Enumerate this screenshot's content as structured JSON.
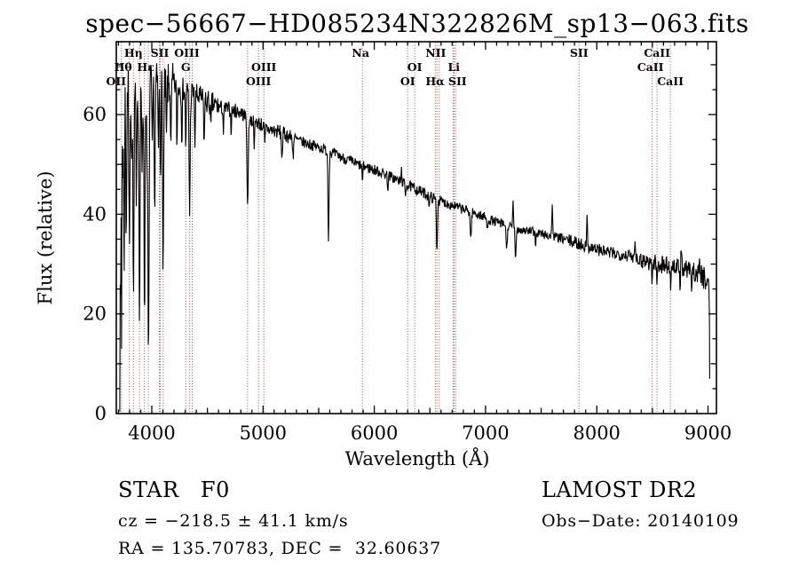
{
  "chart": {
    "title": "spec−56667−HD085234N322826M_sp13−063.fits",
    "xlabel": "Wavelength (Å)",
    "ylabel": "Flux (relative)"
  },
  "annotations": {
    "class_label": "STAR   F0",
    "survey": "LAMOST DR2",
    "cz": "cz = −218.5 ± 41.1 km/s",
    "obs_date": "Obs−Date: 20140109",
    "coords": "RA = 135.70783, DEC =  32.60637"
  },
  "chart_data": {
    "type": "line",
    "title": "spec−56667−HD085234N322826M_sp13−063.fits",
    "xlabel": "Wavelength (Å)",
    "ylabel": "Flux (relative)",
    "xlim": [
      3681,
      9076
    ],
    "ylim": [
      0,
      74.6
    ],
    "x_ticks": [
      4000,
      5000,
      6000,
      7000,
      8000,
      9000
    ],
    "y_ticks": [
      0,
      20,
      40,
      60
    ],
    "x_minor_step": 100,
    "y_minor_step": 5,
    "grid": false,
    "line_color": "#000000",
    "marker_color": "#9a4b4b",
    "marker_lines": [
      3727,
      3798,
      3835,
      3889,
      3934,
      3969,
      4068,
      4076,
      4102,
      4305,
      4340,
      4363,
      4861,
      4959,
      5007,
      5893,
      6300,
      6363,
      6548,
      6563,
      6584,
      6708,
      6717,
      6731,
      7840,
      8498,
      8542,
      8662
    ],
    "line_labels": [
      {
        "text": "Hη",
        "wavelength": 3835,
        "row": 1,
        "dx": 0
      },
      {
        "text": "SII",
        "wavelength": 4072,
        "row": 1,
        "dx": 0
      },
      {
        "text": "OIII",
        "wavelength": 4363,
        "row": 1,
        "dx": -6
      },
      {
        "text": "Na",
        "wavelength": 5893,
        "row": 1,
        "dx": -2
      },
      {
        "text": "NII",
        "wavelength": 6584,
        "row": 1,
        "dx": -4
      },
      {
        "text": "SII",
        "wavelength": 7840,
        "row": 1,
        "dx": 0
      },
      {
        "text": "CaII",
        "wavelength": 8542,
        "row": 1,
        "dx": 0
      },
      {
        "text": "Hθ",
        "wavelength": 3798,
        "row": 2,
        "dx": -7
      },
      {
        "text": "Hε",
        "wavelength": 3969,
        "row": 2,
        "dx": -3
      },
      {
        "text": "G",
        "wavelength": 4305,
        "row": 2,
        "dx": 0
      },
      {
        "text": "OIII",
        "wavelength": 5007,
        "row": 2,
        "dx": 0
      },
      {
        "text": "OI",
        "wavelength": 6363,
        "row": 2,
        "dx": 0
      },
      {
        "text": "Li",
        "wavelength": 6708,
        "row": 2,
        "dx": 1
      },
      {
        "text": "CaII",
        "wavelength": 8498,
        "row": 2,
        "dx": -2
      },
      {
        "text": "OII",
        "wavelength": 3727,
        "row": 3,
        "dx": -6
      },
      {
        "text": "OIII",
        "wavelength": 4959,
        "row": 3,
        "dx": 0
      },
      {
        "text": "OI",
        "wavelength": 6300,
        "row": 3,
        "dx": 0
      },
      {
        "text": "Hα",
        "wavelength": 6563,
        "row": 3,
        "dx": -2
      },
      {
        "text": "SII",
        "wavelength": 6724,
        "row": 3,
        "dx": 3
      },
      {
        "text": "CaII",
        "wavelength": 8662,
        "row": 3,
        "dx": 0
      }
    ],
    "continuum_points": [
      [
        3712,
        2
      ],
      [
        3715,
        40
      ],
      [
        3719,
        10
      ],
      [
        3723,
        58
      ],
      [
        3728,
        34
      ],
      [
        3733,
        62
      ],
      [
        3739,
        50
      ],
      [
        3745,
        63
      ],
      [
        3752,
        55
      ],
      [
        3760,
        64
      ],
      [
        3770,
        61
      ],
      [
        3780,
        65
      ],
      [
        3800,
        64
      ],
      [
        3830,
        64.5
      ],
      [
        3870,
        63.5
      ],
      [
        3920,
        64
      ],
      [
        3960,
        65
      ],
      [
        4000,
        66
      ],
      [
        4060,
        66
      ],
      [
        4120,
        65.5
      ],
      [
        4180,
        66
      ],
      [
        4240,
        65.5
      ],
      [
        4300,
        65
      ],
      [
        4360,
        64.5
      ],
      [
        4420,
        63.5
      ],
      [
        4500,
        62.5
      ],
      [
        4600,
        61.5
      ],
      [
        4700,
        61
      ],
      [
        4800,
        60.5
      ],
      [
        4870,
        59
      ],
      [
        4950,
        58.5
      ],
      [
        5050,
        57
      ],
      [
        5150,
        56.5
      ],
      [
        5250,
        55.5
      ],
      [
        5350,
        54.5
      ],
      [
        5450,
        53.8
      ],
      [
        5550,
        53
      ],
      [
        5650,
        52
      ],
      [
        5750,
        51
      ],
      [
        5850,
        50
      ],
      [
        5950,
        49.3
      ],
      [
        6050,
        48.5
      ],
      [
        6150,
        47.5
      ],
      [
        6250,
        46.3
      ],
      [
        6350,
        45.3
      ],
      [
        6450,
        44.2
      ],
      [
        6550,
        43
      ],
      [
        6650,
        42.2
      ],
      [
        6750,
        41.4
      ],
      [
        6850,
        40.6
      ],
      [
        6950,
        39.8
      ],
      [
        7050,
        38.8
      ],
      [
        7150,
        38
      ],
      [
        7250,
        37.3
      ],
      [
        7350,
        36.8
      ],
      [
        7450,
        36.3
      ],
      [
        7550,
        35.8
      ],
      [
        7650,
        35.3
      ],
      [
        7750,
        34.7
      ],
      [
        7850,
        34
      ],
      [
        7950,
        33.4
      ],
      [
        8050,
        32.6
      ],
      [
        8150,
        32.1
      ],
      [
        8250,
        31.9
      ],
      [
        8350,
        31.3
      ],
      [
        8450,
        30.6
      ],
      [
        8550,
        30.1
      ],
      [
        8650,
        29.7
      ],
      [
        8750,
        29.2
      ],
      [
        8850,
        28.6
      ],
      [
        8950,
        27.6
      ],
      [
        9000,
        26.8
      ],
      [
        9010,
        26
      ]
    ],
    "absorption_features": [
      [
        3727,
        22,
        4
      ],
      [
        3750,
        26,
        4
      ],
      [
        3770,
        24,
        4
      ],
      [
        3798,
        30,
        4.5
      ],
      [
        3819,
        16,
        3.5
      ],
      [
        3835,
        42,
        4.5
      ],
      [
        3860,
        18,
        3.5
      ],
      [
        3889,
        45,
        4.5
      ],
      [
        3912,
        14,
        3.5
      ],
      [
        3934,
        44,
        4.5
      ],
      [
        3957,
        18,
        3.5
      ],
      [
        3970,
        57,
        5
      ],
      [
        4005,
        16,
        3.5
      ],
      [
        4026,
        26,
        4
      ],
      [
        4060,
        14,
        3.5
      ],
      [
        4078,
        16,
        3.5
      ],
      [
        4102,
        35,
        5
      ],
      [
        4132,
        12,
        3.5
      ],
      [
        4172,
        14,
        3.5
      ],
      [
        4226,
        12,
        3.5
      ],
      [
        4270,
        10,
        3.5
      ],
      [
        4305,
        11,
        4
      ],
      [
        4340,
        24,
        5
      ],
      [
        4388,
        10,
        3.5
      ],
      [
        4471,
        9,
        3.5
      ],
      [
        4530,
        6,
        3.5
      ],
      [
        4644,
        5,
        3.5
      ],
      [
        4713,
        4,
        3.5
      ],
      [
        4861,
        19,
        5
      ],
      [
        4922,
        5,
        3.5
      ],
      [
        5016,
        4,
        3.5
      ],
      [
        5170,
        4.5,
        5
      ],
      [
        5270,
        3.5,
        4
      ],
      [
        5588,
        18,
        4.5
      ],
      [
        5893,
        3,
        4
      ],
      [
        6122,
        2.5,
        3.5
      ],
      [
        6280,
        2,
        3.5
      ],
      [
        6495,
        2,
        3.5
      ],
      [
        6563,
        10.5,
        4.5
      ],
      [
        6867,
        5.5,
        5
      ],
      [
        7015,
        2.5,
        4
      ],
      [
        7190,
        5,
        5
      ],
      [
        7270,
        7,
        4.5
      ],
      [
        7450,
        2,
        4
      ],
      [
        8498,
        3.5,
        4
      ],
      [
        8542,
        4,
        4
      ],
      [
        8662,
        3.5,
        4
      ],
      [
        8750,
        4.5,
        3.5
      ],
      [
        8850,
        4,
        3.5
      ]
    ],
    "emission_spikes": [
      [
        6245,
        2.5,
        3.5
      ],
      [
        7248,
        5.5,
        3.5
      ],
      [
        7600,
        7,
        3.5
      ],
      [
        7913,
        5.5,
        3.5
      ],
      [
        8344,
        4.5,
        3.5
      ],
      [
        8760,
        5,
        3.5
      ],
      [
        8920,
        4,
        3.5
      ]
    ],
    "noise": {
      "seed": 7,
      "regions": [
        [
          3680,
          3800,
          7
        ],
        [
          3800,
          4200,
          4.5
        ],
        [
          4200,
          4600,
          2.5
        ],
        [
          4600,
          5300,
          1.5
        ],
        [
          5300,
          6600,
          1.1
        ],
        [
          6600,
          7700,
          1.0
        ],
        [
          7700,
          8400,
          1.3
        ],
        [
          8400,
          8900,
          1.9
        ],
        [
          8900,
          9020,
          2.4
        ]
      ]
    },
    "end_drop": {
      "wavelength": 9015,
      "flux": 7
    }
  }
}
